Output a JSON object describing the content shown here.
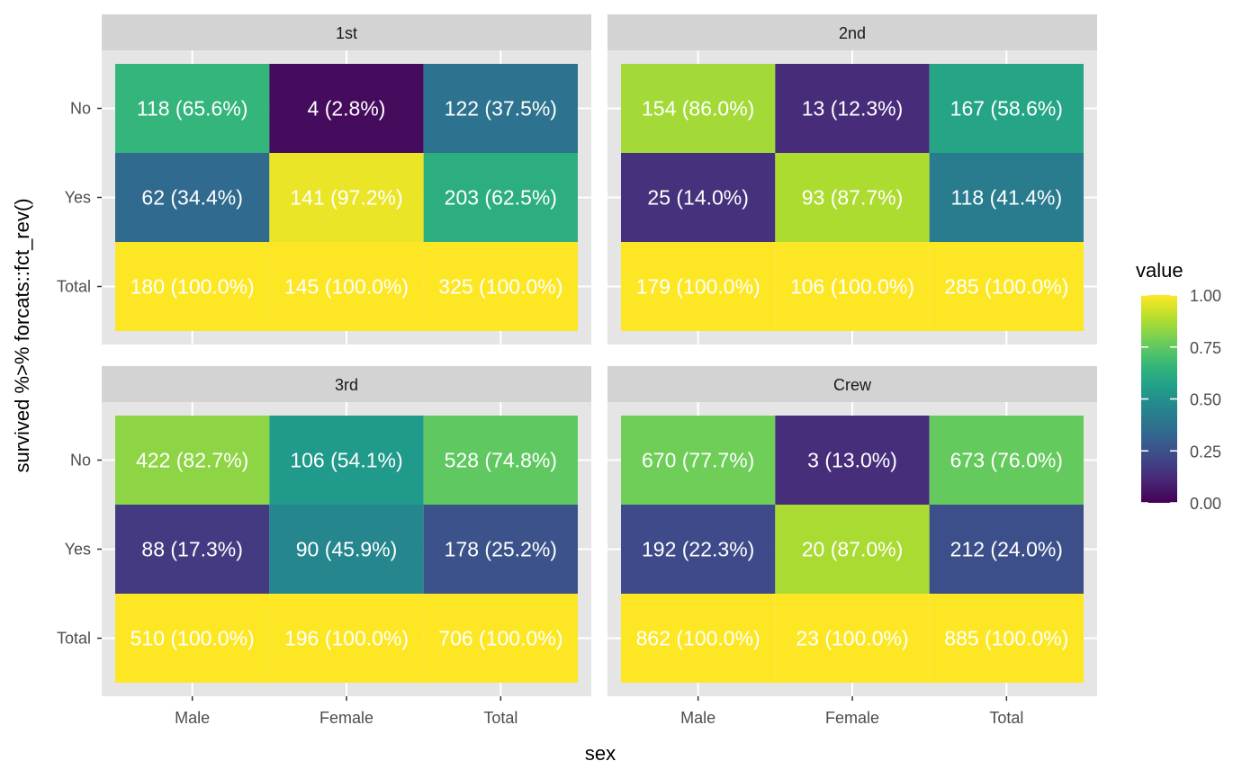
{
  "chart_data": {
    "type": "heatmap",
    "title": "",
    "xlabel": "sex",
    "ylabel": "survived %>% forcats::fct_rev()",
    "x_categories": [
      "Male",
      "Female",
      "Total"
    ],
    "y_categories": [
      "No",
      "Yes",
      "Total"
    ],
    "facets": [
      {
        "name": "1st",
        "rows": [
          {
            "y": "No",
            "cells": [
              {
                "x": "Male",
                "count": 118,
                "pct": "65.6%",
                "value": 0.656,
                "label": "118  (65.6%)"
              },
              {
                "x": "Female",
                "count": 4,
                "pct": "2.8%",
                "value": 0.028,
                "label": "4  (2.8%)"
              },
              {
                "x": "Total",
                "count": 122,
                "pct": "37.5%",
                "value": 0.375,
                "label": "122  (37.5%)"
              }
            ]
          },
          {
            "y": "Yes",
            "cells": [
              {
                "x": "Male",
                "count": 62,
                "pct": "34.4%",
                "value": 0.344,
                "label": "62  (34.4%)"
              },
              {
                "x": "Female",
                "count": 141,
                "pct": "97.2%",
                "value": 0.972,
                "label": "141  (97.2%)"
              },
              {
                "x": "Total",
                "count": 203,
                "pct": "62.5%",
                "value": 0.625,
                "label": "203  (62.5%)"
              }
            ]
          },
          {
            "y": "Total",
            "cells": [
              {
                "x": "Male",
                "count": 180,
                "pct": "100.0%",
                "value": 1.0,
                "label": "180 (100.0%)"
              },
              {
                "x": "Female",
                "count": 145,
                "pct": "100.0%",
                "value": 1.0,
                "label": "145 (100.0%)"
              },
              {
                "x": "Total",
                "count": 325,
                "pct": "100.0%",
                "value": 1.0,
                "label": "325 (100.0%)"
              }
            ]
          }
        ]
      },
      {
        "name": "2nd",
        "rows": [
          {
            "y": "No",
            "cells": [
              {
                "x": "Male",
                "count": 154,
                "pct": "86.0%",
                "value": 0.86,
                "label": "154  (86.0%)"
              },
              {
                "x": "Female",
                "count": 13,
                "pct": "12.3%",
                "value": 0.123,
                "label": "13  (12.3%)"
              },
              {
                "x": "Total",
                "count": 167,
                "pct": "58.6%",
                "value": 0.586,
                "label": "167  (58.6%)"
              }
            ]
          },
          {
            "y": "Yes",
            "cells": [
              {
                "x": "Male",
                "count": 25,
                "pct": "14.0%",
                "value": 0.14,
                "label": "25  (14.0%)"
              },
              {
                "x": "Female",
                "count": 93,
                "pct": "87.7%",
                "value": 0.877,
                "label": "93  (87.7%)"
              },
              {
                "x": "Total",
                "count": 118,
                "pct": "41.4%",
                "value": 0.414,
                "label": "118  (41.4%)"
              }
            ]
          },
          {
            "y": "Total",
            "cells": [
              {
                "x": "Male",
                "count": 179,
                "pct": "100.0%",
                "value": 1.0,
                "label": "179 (100.0%)"
              },
              {
                "x": "Female",
                "count": 106,
                "pct": "100.0%",
                "value": 1.0,
                "label": "106 (100.0%)"
              },
              {
                "x": "Total",
                "count": 285,
                "pct": "100.0%",
                "value": 1.0,
                "label": "285 (100.0%)"
              }
            ]
          }
        ]
      },
      {
        "name": "3rd",
        "rows": [
          {
            "y": "No",
            "cells": [
              {
                "x": "Male",
                "count": 422,
                "pct": "82.7%",
                "value": 0.827,
                "label": "422  (82.7%)"
              },
              {
                "x": "Female",
                "count": 106,
                "pct": "54.1%",
                "value": 0.541,
                "label": "106  (54.1%)"
              },
              {
                "x": "Total",
                "count": 528,
                "pct": "74.8%",
                "value": 0.748,
                "label": "528  (74.8%)"
              }
            ]
          },
          {
            "y": "Yes",
            "cells": [
              {
                "x": "Male",
                "count": 88,
                "pct": "17.3%",
                "value": 0.173,
                "label": "88  (17.3%)"
              },
              {
                "x": "Female",
                "count": 90,
                "pct": "45.9%",
                "value": 0.459,
                "label": "90  (45.9%)"
              },
              {
                "x": "Total",
                "count": 178,
                "pct": "25.2%",
                "value": 0.252,
                "label": "178  (25.2%)"
              }
            ]
          },
          {
            "y": "Total",
            "cells": [
              {
                "x": "Male",
                "count": 510,
                "pct": "100.0%",
                "value": 1.0,
                "label": "510 (100.0%)"
              },
              {
                "x": "Female",
                "count": 196,
                "pct": "100.0%",
                "value": 1.0,
                "label": "196 (100.0%)"
              },
              {
                "x": "Total",
                "count": 706,
                "pct": "100.0%",
                "value": 1.0,
                "label": "706 (100.0%)"
              }
            ]
          }
        ]
      },
      {
        "name": "Crew",
        "rows": [
          {
            "y": "No",
            "cells": [
              {
                "x": "Male",
                "count": 670,
                "pct": "77.7%",
                "value": 0.777,
                "label": "670  (77.7%)"
              },
              {
                "x": "Female",
                "count": 3,
                "pct": "13.0%",
                "value": 0.13,
                "label": "3  (13.0%)"
              },
              {
                "x": "Total",
                "count": 673,
                "pct": "76.0%",
                "value": 0.76,
                "label": "673  (76.0%)"
              }
            ]
          },
          {
            "y": "Yes",
            "cells": [
              {
                "x": "Male",
                "count": 192,
                "pct": "22.3%",
                "value": 0.223,
                "label": "192  (22.3%)"
              },
              {
                "x": "Female",
                "count": 20,
                "pct": "87.0%",
                "value": 0.87,
                "label": "20  (87.0%)"
              },
              {
                "x": "Total",
                "count": 212,
                "pct": "24.0%",
                "value": 0.24,
                "label": "212  (24.0%)"
              }
            ]
          },
          {
            "y": "Total",
            "cells": [
              {
                "x": "Male",
                "count": 862,
                "pct": "100.0%",
                "value": 1.0,
                "label": "862 (100.0%)"
              },
              {
                "x": "Female",
                "count": 23,
                "pct": "100.0%",
                "value": 1.0,
                "label": "23 (100.0%)"
              },
              {
                "x": "Total",
                "count": 885,
                "pct": "100.0%",
                "value": 1.0,
                "label": "885 (100.0%)"
              }
            ]
          }
        ]
      }
    ],
    "legend": {
      "title": "value",
      "placement": "right",
      "colormap": "viridis",
      "range": [
        0,
        1
      ],
      "ticks": [
        0,
        0.25,
        0.5,
        0.75,
        1
      ],
      "tick_labels": [
        "0.00",
        "0.25",
        "0.50",
        "0.75",
        "1.00"
      ]
    },
    "grid": true,
    "colors": {
      "panel_background": "#e5e5e5",
      "strip_background": "#d3d3d3",
      "gridline": "#ffffff",
      "cell_label": "#ffffff",
      "axis_text": "#4d4d4d"
    }
  }
}
